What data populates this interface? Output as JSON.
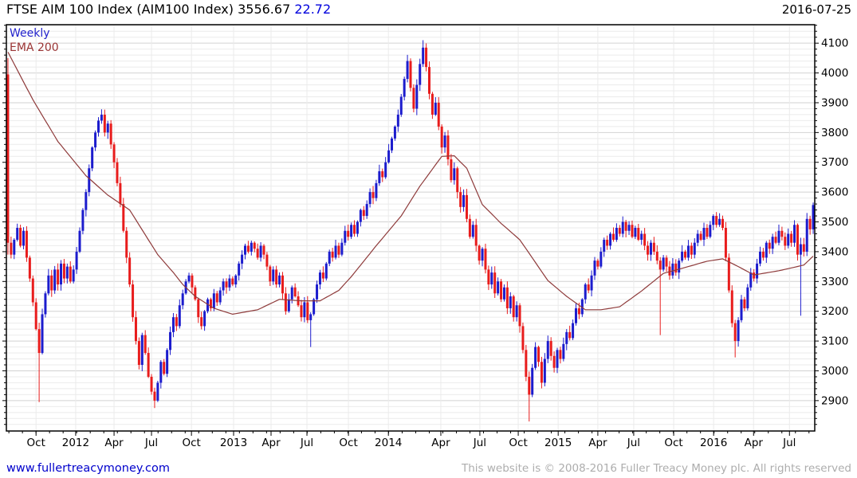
{
  "header": {
    "title": "FTSE AIM 100 Index (AIM100 Index)",
    "last": "3556.67",
    "change": "22.72",
    "date": "2016-07-25"
  },
  "legend": {
    "series": "Weekly",
    "overlay": "EMA 200"
  },
  "footer": {
    "site": "www.fullertreacymoney.com",
    "copyright": "This website is © 2008-2016 Fuller Treacy Money plc. All rights reserved"
  },
  "colors": {
    "up": "#1c1ccd",
    "down": "#e81c1c",
    "ema": "#8e3a3a",
    "grid_major": "#d2d2d2",
    "grid_minor": "#ebebeb",
    "frame": "#000000",
    "axis_text": "#000000",
    "title_change": "#0000dd",
    "legend_series": "#2222cc",
    "legend_ema": "#993333",
    "link": "#0000cc",
    "copyright": "#adadad"
  },
  "chart_data": {
    "type": "candlestick",
    "period": "Weekly",
    "title": "FTSE AIM 100 Index (AIM100 Index)",
    "last_price": 3556.67,
    "change": 22.72,
    "overlay": "EMA 200",
    "grid": true,
    "y_labels": [
      2900,
      3000,
      3100,
      3200,
      3300,
      3400,
      3500,
      3600,
      3700,
      3800,
      3900,
      4000,
      4100
    ],
    "y_minor_step": 20,
    "ylim_render": [
      2798,
      4162
    ],
    "x_ticks": [
      {
        "label": "Oct",
        "i": 9
      },
      {
        "label": "2012",
        "i": 21.7
      },
      {
        "label": "Apr",
        "i": 34
      },
      {
        "label": "Jul",
        "i": 46
      },
      {
        "label": "Oct",
        "i": 58.8
      },
      {
        "label": "2013",
        "i": 72.3
      },
      {
        "label": "Apr",
        "i": 84.3
      },
      {
        "label": "Jul",
        "i": 95.8
      },
      {
        "label": "Oct",
        "i": 109.1
      },
      {
        "label": "2014",
        "i": 121.9
      },
      {
        "label": "Apr",
        "i": 138.7
      },
      {
        "label": "Jul",
        "i": 151.2
      },
      {
        "label": "Oct",
        "i": 163.5
      },
      {
        "label": "2015",
        "i": 176.3
      },
      {
        "label": "Apr",
        "i": 189
      },
      {
        "label": "Jul",
        "i": 200.5
      },
      {
        "label": "Oct",
        "i": 213.3
      },
      {
        "label": "2016",
        "i": 226.1
      },
      {
        "label": "Apr",
        "i": 238.9
      },
      {
        "label": "Jul",
        "i": 250.4
      }
    ],
    "x_minor_tick_step": 4.345,
    "start_open": 3995,
    "closes": [
      3430,
      3390,
      3440,
      3480,
      3420,
      3470,
      3380,
      3310,
      3230,
      3140,
      3060,
      3190,
      3260,
      3320,
      3270,
      3340,
      3290,
      3360,
      3310,
      3350,
      3300,
      3340,
      3400,
      3470,
      3540,
      3600,
      3680,
      3750,
      3800,
      3840,
      3860,
      3800,
      3830,
      3760,
      3700,
      3630,
      3560,
      3470,
      3380,
      3290,
      3180,
      3100,
      3020,
      3120,
      3060,
      2980,
      2930,
      2900,
      2960,
      3030,
      2990,
      3070,
      3130,
      3180,
      3150,
      3220,
      3260,
      3300,
      3320,
      3280,
      3240,
      3180,
      3150,
      3200,
      3240,
      3210,
      3260,
      3230,
      3270,
      3300,
      3280,
      3310,
      3290,
      3320,
      3360,
      3390,
      3420,
      3400,
      3430,
      3410,
      3380,
      3420,
      3390,
      3350,
      3300,
      3340,
      3290,
      3320,
      3260,
      3200,
      3240,
      3280,
      3250,
      3220,
      3180,
      3230,
      3170,
      3190,
      3240,
      3290,
      3330,
      3310,
      3360,
      3400,
      3380,
      3420,
      3390,
      3430,
      3470,
      3450,
      3490,
      3460,
      3500,
      3540,
      3520,
      3560,
      3600,
      3580,
      3630,
      3670,
      3650,
      3700,
      3740,
      3780,
      3820,
      3860,
      3920,
      3980,
      4040,
      3950,
      3880,
      3960,
      4030,
      4085,
      4020,
      3930,
      3860,
      3900,
      3820,
      3750,
      3790,
      3710,
      3640,
      3680,
      3600,
      3550,
      3590,
      3510,
      3450,
      3490,
      3420,
      3370,
      3410,
      3340,
      3290,
      3330,
      3260,
      3300,
      3240,
      3280,
      3210,
      3250,
      3180,
      3220,
      3150,
      3070,
      2980,
      2920,
      3010,
      3080,
      3030,
      2960,
      3040,
      3100,
      3050,
      3010,
      3070,
      3040,
      3090,
      3130,
      3110,
      3160,
      3210,
      3190,
      3240,
      3290,
      3270,
      3320,
      3370,
      3350,
      3400,
      3440,
      3420,
      3460,
      3440,
      3480,
      3460,
      3500,
      3470,
      3490,
      3450,
      3480,
      3440,
      3460,
      3420,
      3390,
      3430,
      3400,
      3370,
      3340,
      3380,
      3350,
      3320,
      3360,
      3330,
      3370,
      3400,
      3380,
      3420,
      3390,
      3430,
      3460,
      3440,
      3480,
      3450,
      3490,
      3520,
      3490,
      3510,
      3480,
      3380,
      3270,
      3160,
      3100,
      3170,
      3240,
      3210,
      3280,
      3330,
      3310,
      3360,
      3400,
      3380,
      3430,
      3410,
      3450,
      3430,
      3470,
      3450,
      3420,
      3460,
      3430,
      3490,
      3390,
      3425,
      3400,
      3510,
      3475,
      3556.67
    ],
    "high_overrides": {
      "0": 4050,
      "30": 3878,
      "133": 4110,
      "256": 3530,
      "258": 3565
    },
    "low_overrides": {
      "0": 3390,
      "10": 2895,
      "47": 2875,
      "97": 3080,
      "167": 2830,
      "209": 3120,
      "233": 3045,
      "254": 3185
    },
    "ema_anchors": [
      [
        0,
        4070
      ],
      [
        8,
        3910
      ],
      [
        16,
        3770
      ],
      [
        25,
        3655
      ],
      [
        32,
        3590
      ],
      [
        39,
        3540
      ],
      [
        48,
        3390
      ],
      [
        53,
        3330
      ],
      [
        56,
        3290
      ],
      [
        60,
        3250
      ],
      [
        66,
        3210
      ],
      [
        72,
        3190
      ],
      [
        80,
        3205
      ],
      [
        87,
        3240
      ],
      [
        94,
        3235
      ],
      [
        100,
        3235
      ],
      [
        106,
        3270
      ],
      [
        110,
        3316
      ],
      [
        118,
        3420
      ],
      [
        126,
        3520
      ],
      [
        132,
        3620
      ],
      [
        139,
        3720
      ],
      [
        143,
        3722
      ],
      [
        147,
        3680
      ],
      [
        152,
        3558
      ],
      [
        158,
        3495
      ],
      [
        164,
        3440
      ],
      [
        173,
        3303
      ],
      [
        179,
        3250
      ],
      [
        185,
        3205
      ],
      [
        190,
        3205
      ],
      [
        196,
        3215
      ],
      [
        203,
        3268
      ],
      [
        210,
        3327
      ],
      [
        218,
        3350
      ],
      [
        224,
        3368
      ],
      [
        229,
        3376
      ],
      [
        234,
        3350
      ],
      [
        239,
        3322
      ],
      [
        247,
        3336
      ],
      [
        255,
        3355
      ],
      [
        258,
        3385
      ]
    ]
  }
}
